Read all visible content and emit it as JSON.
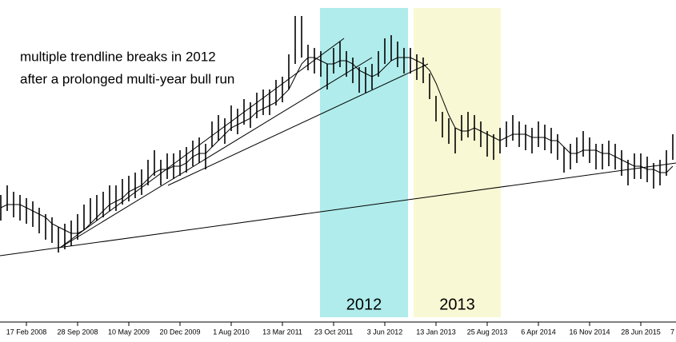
{
  "chart_data": {
    "type": "range-bar",
    "annotation": [
      "multiple trendline breaks in 2012",
      "after a prolonged multi-year bull run"
    ],
    "x": [
      -16,
      -12,
      -8,
      -4,
      0,
      4,
      8,
      12,
      16,
      20,
      24,
      28,
      32,
      36,
      40,
      44,
      48,
      52,
      56,
      60,
      64,
      68,
      72,
      76,
      80,
      84,
      88,
      92,
      96,
      100,
      104,
      108,
      112,
      116,
      120,
      124,
      128,
      132,
      136,
      140,
      144,
      148,
      152,
      156,
      160,
      164,
      168,
      172,
      176,
      180,
      184,
      188,
      192,
      196,
      200,
      204,
      208,
      212,
      216,
      220,
      224,
      228,
      232,
      236,
      240,
      244,
      248,
      252,
      256,
      260,
      264,
      268,
      272,
      276,
      280,
      284,
      288,
      292,
      296,
      300,
      304,
      308,
      312,
      316,
      320,
      324,
      328,
      332,
      336,
      340,
      344,
      348,
      352,
      356,
      360,
      364,
      368,
      372,
      376,
      380,
      384,
      388,
      392,
      396,
      400,
      404
    ],
    "high": [
      39,
      42,
      40,
      39,
      38,
      37,
      35,
      33,
      32,
      29,
      30,
      31,
      33,
      36,
      38,
      39,
      40,
      42,
      42,
      44,
      45,
      46,
      47,
      50,
      53,
      50,
      52,
      52,
      53,
      54,
      56,
      57,
      55,
      62,
      64,
      63,
      67,
      66,
      69,
      68,
      71,
      72,
      72,
      75,
      76,
      83,
      95,
      95,
      86,
      85,
      84,
      80,
      85,
      87,
      84,
      82,
      79,
      79,
      80,
      84,
      88,
      89,
      87,
      85,
      85,
      83,
      82,
      77,
      70,
      65,
      63,
      60,
      64,
      65,
      64,
      62,
      59,
      58,
      60,
      62,
      64,
      62,
      61,
      60,
      62,
      61,
      60,
      58,
      54,
      55,
      57,
      59,
      57,
      55,
      55,
      56,
      55,
      53,
      50,
      52,
      52,
      51,
      49,
      50,
      53,
      58
    ],
    "low": [
      31,
      34,
      32,
      31,
      30,
      29,
      27,
      25,
      24,
      21,
      22,
      23,
      25,
      28,
      30,
      31,
      32,
      34,
      34,
      36,
      37,
      38,
      39,
      42,
      45,
      42,
      44,
      44,
      45,
      46,
      48,
      49,
      47,
      54,
      56,
      55,
      59,
      58,
      61,
      60,
      63,
      64,
      64,
      67,
      68,
      72,
      80,
      82,
      78,
      77,
      76,
      72,
      77,
      79,
      76,
      74,
      71,
      71,
      72,
      76,
      80,
      81,
      79,
      77,
      77,
      75,
      74,
      69,
      62,
      57,
      55,
      52,
      56,
      57,
      56,
      54,
      51,
      50,
      52,
      54,
      56,
      54,
      53,
      52,
      54,
      53,
      52,
      50,
      46,
      47,
      49,
      51,
      49,
      47,
      47,
      48,
      47,
      45,
      42,
      44,
      44,
      43,
      41,
      42,
      45,
      50
    ],
    "color": "#000000",
    "moving_average": {
      "color": "#000000",
      "values": [
        35,
        36,
        36,
        36,
        35,
        34,
        33,
        32,
        30,
        29,
        28,
        27,
        27,
        28,
        30,
        32,
        34,
        36,
        37,
        38,
        40,
        41,
        42,
        44,
        46,
        47,
        47,
        48,
        48,
        49,
        51,
        52,
        52,
        54,
        56,
        58,
        60,
        61,
        62,
        63,
        65,
        66,
        67,
        68,
        70,
        72,
        76,
        80,
        82,
        82,
        81,
        80,
        80,
        81,
        81,
        80,
        78,
        77,
        76,
        77,
        79,
        81,
        82,
        82,
        82,
        81,
        80,
        78,
        74,
        69,
        64,
        60,
        59,
        59,
        60,
        59,
        58,
        57,
        56,
        57,
        58,
        58,
        58,
        57,
        57,
        57,
        56,
        56,
        54,
        52,
        52,
        53,
        53,
        53,
        52,
        52,
        51,
        50,
        49,
        48,
        48,
        47,
        47,
        46,
        46,
        48
      ]
    },
    "trendlines": [
      {
        "x": [
          -16.5,
          406
        ],
        "y": [
          20,
          49
        ]
      },
      {
        "x": [
          21,
          198.5
        ],
        "y": [
          22.5,
          88
        ]
      },
      {
        "x": [
          21,
          216
        ],
        "y": [
          22.5,
          82
        ]
      },
      {
        "x": [
          88.5,
          251
        ],
        "y": [
          42,
          80
        ]
      }
    ],
    "regions": [
      {
        "label": "2012",
        "x": [
          183.5,
          238.5
        ],
        "color": "#b0ecec"
      },
      {
        "label": "2013",
        "x": [
          242,
          296.5
        ],
        "color": "#f8f8d4"
      }
    ],
    "xlim": [
      -16.5,
      406
    ],
    "ylim": [
      0,
      100
    ],
    "xticks": [
      {
        "value": 0,
        "label": "17 Feb 2008"
      },
      {
        "value": 32,
        "label": "28 Sep 2008"
      },
      {
        "value": 64,
        "label": "10 May 2009"
      },
      {
        "value": 96,
        "label": "20 Dec 2009"
      },
      {
        "value": 128,
        "label": "1 Aug 2010"
      },
      {
        "value": 160,
        "label": "13 Mar 2011"
      },
      {
        "value": 192,
        "label": "23 Oct 2011"
      },
      {
        "value": 224,
        "label": "3 Jun 2012"
      },
      {
        "value": 256,
        "label": "13 Jan 2013"
      },
      {
        "value": 288,
        "label": "25 Aug 2013"
      },
      {
        "value": 320,
        "label": "6 Apr 2014"
      },
      {
        "value": 352,
        "label": "16 Nov 2014"
      },
      {
        "value": 384,
        "label": "28 Jun 2015"
      },
      {
        "value": 416,
        "label": "7"
      }
    ]
  }
}
